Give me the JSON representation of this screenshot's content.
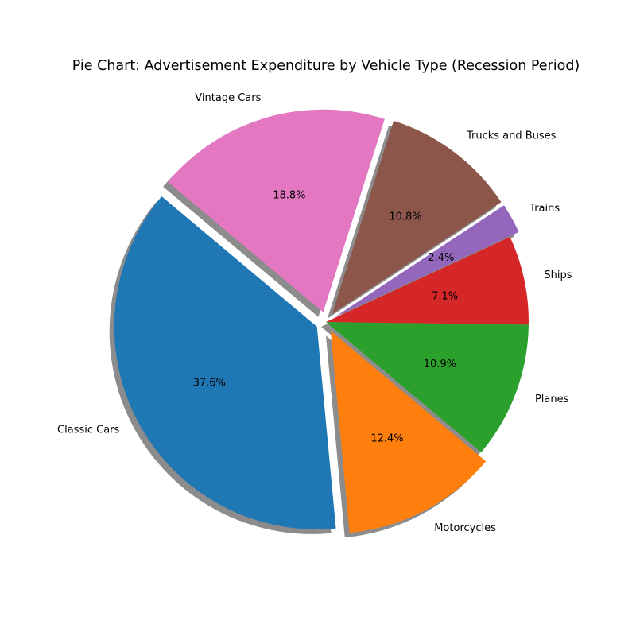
{
  "chart_data": {
    "type": "pie",
    "title": "Pie Chart: Advertisement Expenditure by Vehicle Type (Recession Period)",
    "start_angle_deg": 140,
    "direction": "counterclockwise",
    "shadow": true,
    "slices": [
      {
        "label": "Classic Cars",
        "value": 37.6,
        "pct_label": "37.6%",
        "color": "#1f77b4",
        "exploded": true
      },
      {
        "label": "Motorcycles",
        "value": 12.4,
        "pct_label": "12.4%",
        "color": "#ff7f0e",
        "exploded": true
      },
      {
        "label": "Planes",
        "value": 10.9,
        "pct_label": "10.9%",
        "color": "#2ca02c",
        "exploded": false
      },
      {
        "label": "Ships",
        "value": 7.1,
        "pct_label": "7.1%",
        "color": "#d62728",
        "exploded": false
      },
      {
        "label": "Trains",
        "value": 2.4,
        "pct_label": "2.4%",
        "color": "#9467bd",
        "exploded": true
      },
      {
        "label": "Trucks and Buses",
        "value": 10.8,
        "pct_label": "10.8%",
        "color": "#8c564b",
        "exploded": true
      },
      {
        "label": "Vintage Cars",
        "value": 18.8,
        "pct_label": "18.8%",
        "color": "#e377c2",
        "exploded": true
      }
    ]
  }
}
